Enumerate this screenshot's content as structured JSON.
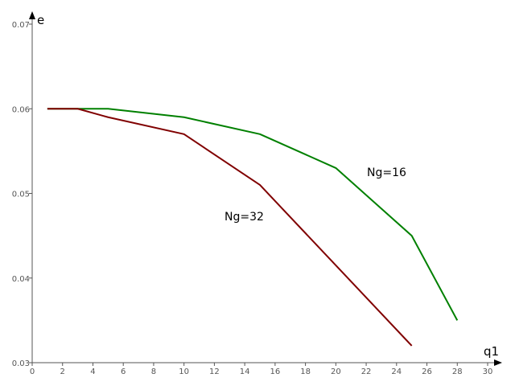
{
  "chart_data": {
    "type": "line",
    "xlabel": "q1",
    "ylabel": "e",
    "xlim": [
      0,
      30
    ],
    "ylim": [
      0.03,
      0.07
    ],
    "xticks": [
      "0",
      "2",
      "4",
      "6",
      "8",
      "10",
      "12",
      "14",
      "16",
      "18",
      "20",
      "22",
      "24",
      "26",
      "28",
      "30"
    ],
    "yticks": [
      "0.03",
      "0.04",
      "0.05",
      "0.06",
      "0.07"
    ],
    "grid": false,
    "series": [
      {
        "name": "Ng=16",
        "color": "#008000",
        "x": [
          1,
          3,
          5,
          10,
          15,
          20,
          25,
          28
        ],
        "y": [
          0.06,
          0.06,
          0.06,
          0.059,
          0.057,
          0.053,
          0.045,
          0.035
        ]
      },
      {
        "name": "Ng=32",
        "color": "#800000",
        "x": [
          1,
          3,
          5,
          10,
          15,
          20,
          25
        ],
        "y": [
          0.06,
          0.06,
          0.059,
          0.057,
          0.051,
          0.0415,
          0.032
        ]
      }
    ]
  }
}
